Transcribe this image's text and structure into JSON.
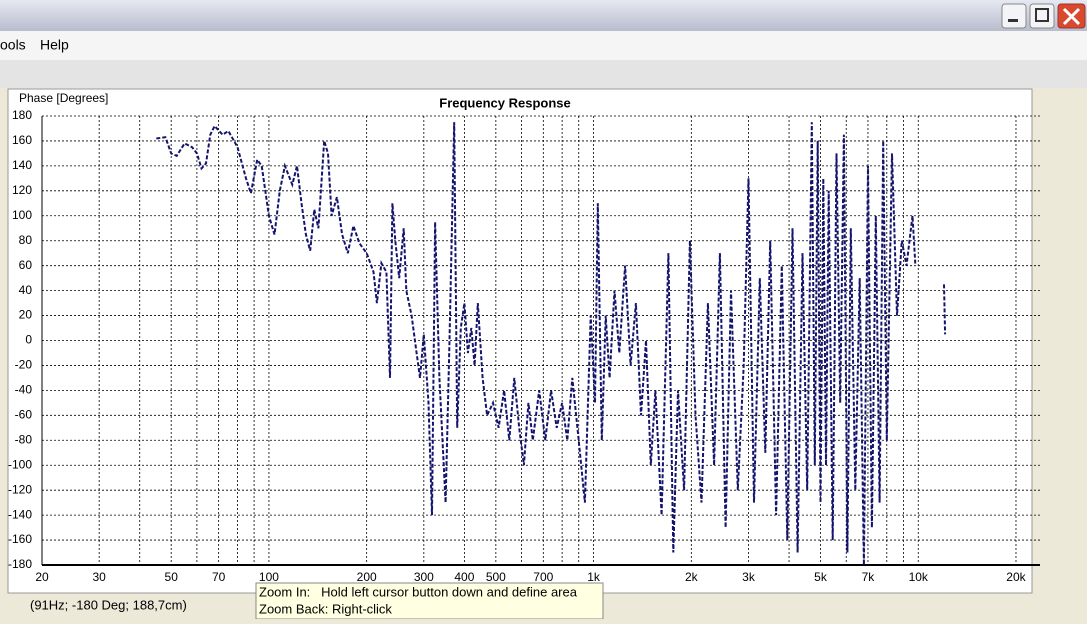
{
  "menu": [
    "ools",
    "Help"
  ],
  "status": "(91Hz; -180 Deg; 188,7cm)",
  "tooltip": [
    "Zoom In:   Hold left cursor button down and define area",
    "Zoom Back: Right-click"
  ],
  "chart_data": {
    "type": "line",
    "title": "Frequency Response",
    "y_label": "Phase [Degrees]",
    "log_x": true,
    "grid": true,
    "xlim": [
      20,
      23714
    ],
    "ylim": [
      -180,
      180
    ],
    "yticks": [
      -180,
      -160,
      -140,
      -120,
      -100,
      -80,
      -60,
      -40,
      -20,
      0,
      20,
      40,
      60,
      80,
      100,
      120,
      140,
      160,
      180
    ],
    "xticks": [
      20,
      30,
      50,
      70,
      100,
      200,
      300,
      400,
      500,
      700,
      {
        "value": 1000,
        "label": "1k"
      },
      {
        "value": 2000,
        "label": "2k"
      },
      {
        "value": 3000,
        "label": "3k"
      },
      {
        "value": 5000,
        "label": "5k"
      },
      {
        "value": 7000,
        "label": "7k"
      },
      {
        "value": 10000,
        "label": "10k"
      },
      {
        "value": 20000,
        "label": "20k"
      }
    ],
    "xminor": [
      40,
      60,
      80,
      90,
      600,
      800,
      900,
      4000,
      6000,
      8000,
      9000
    ],
    "x": [
      45,
      48,
      50,
      52,
      55,
      58,
      60,
      62,
      64,
      66,
      68,
      72,
      75,
      80,
      85,
      88,
      92,
      95,
      100,
      104,
      108,
      112,
      118,
      122,
      126,
      130,
      134,
      138,
      142,
      148,
      152,
      156,
      162,
      168,
      175,
      182,
      190,
      200,
      210,
      215,
      222,
      230,
      236,
      240,
      245,
      252,
      260,
      265,
      275,
      285,
      292,
      300,
      310,
      318,
      325,
      335,
      350,
      360,
      372,
      380,
      390,
      400,
      410,
      420,
      430,
      440,
      455,
      470,
      490,
      510,
      530,
      550,
      570,
      590,
      610,
      630,
      650,
      680,
      710,
      740,
      770,
      800,
      830,
      860,
      900,
      940,
      980,
      1010,
      1030,
      1060,
      1090,
      1120,
      1160,
      1200,
      1250,
      1300,
      1350,
      1400,
      1450,
      1500,
      1550,
      1620,
      1700,
      1760,
      1820,
      1900,
      1980,
      2060,
      2150,
      2250,
      2350,
      2450,
      2550,
      2650,
      2780,
      2900,
      3000,
      3120,
      3250,
      3380,
      3500,
      3650,
      3800,
      3950,
      4100,
      4250,
      4400,
      4550,
      4700,
      4800,
      4900,
      5000,
      5100,
      5200,
      5300,
      5450,
      5600,
      5750,
      5900,
      6050,
      6200,
      6400,
      6600,
      6800,
      7000,
      7200,
      7400,
      7600,
      7800,
      8000,
      8300,
      8600,
      8900,
      9200,
      9600,
      9800,
      11000,
      12000,
      12100
    ],
    "series": [
      {
        "name": "Phase",
        "color": "#14146e",
        "values": [
          162,
          163,
          150,
          148,
          158,
          155,
          150,
          138,
          142,
          165,
          172,
          165,
          168,
          155,
          130,
          118,
          145,
          140,
          100,
          85,
          120,
          140,
          125,
          140,
          110,
          85,
          72,
          105,
          90,
          160,
          150,
          100,
          115,
          85,
          70,
          92,
          78,
          70,
          55,
          30,
          62,
          55,
          -30,
          110,
          80,
          50,
          90,
          40,
          20,
          -10,
          -30,
          5,
          -50,
          -140,
          95,
          -30,
          -130,
          0,
          175,
          -70,
          10,
          30,
          -10,
          10,
          -20,
          30,
          -30,
          -60,
          -50,
          -70,
          -40,
          -80,
          -30,
          -70,
          -100,
          -50,
          -80,
          -40,
          -80,
          -40,
          -70,
          -50,
          -80,
          -30,
          -80,
          -130,
          20,
          -50,
          110,
          -80,
          20,
          -30,
          40,
          -10,
          60,
          -20,
          30,
          -60,
          0,
          -100,
          -40,
          -140,
          70,
          -170,
          -40,
          -120,
          80,
          -60,
          -130,
          30,
          -100,
          70,
          -150,
          40,
          -120,
          -20,
          130,
          -130,
          50,
          -90,
          80,
          -140,
          60,
          -160,
          90,
          -170,
          70,
          -120,
          175,
          -100,
          160,
          -130,
          130,
          -100,
          120,
          -160,
          150,
          -50,
          165,
          -170,
          90,
          -120,
          50,
          -180,
          140,
          -150,
          100,
          -130,
          160,
          -80,
          150,
          20,
          80,
          60,
          100,
          60,
          null,
          45,
          5
        ]
      }
    ]
  }
}
